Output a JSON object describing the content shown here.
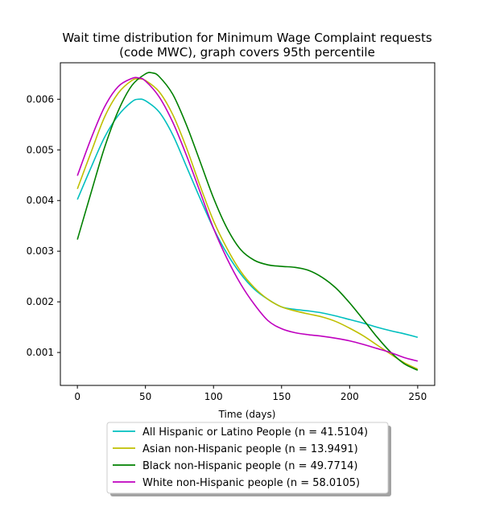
{
  "chart_data": {
    "type": "line",
    "title_line1": "Wait time distribution  for Minimum Wage Complaint  requests",
    "title_line2": "(code MWC), graph covers 95th percentile",
    "xlabel": "Time (days)",
    "ylabel": "",
    "xlim": [
      -12.5,
      262.5
    ],
    "ylim": [
      0.00035,
      0.00672
    ],
    "x_ticks": [
      0,
      50,
      100,
      150,
      200,
      250
    ],
    "y_ticks": [
      0.001,
      0.002,
      0.003,
      0.004,
      0.005,
      0.006
    ],
    "y_tick_labels": [
      "0.001",
      "0.002",
      "0.003",
      "0.004",
      "0.005",
      "0.006"
    ],
    "grid": false,
    "legend_position": "below plot",
    "series": [
      {
        "name": "All Hispanic or Latino People (n = 41.5104)",
        "color": "#00bfbf",
        "x": [
          0,
          10,
          20,
          30,
          40,
          45,
          50,
          60,
          70,
          80,
          90,
          100,
          110,
          120,
          130,
          140,
          150,
          160,
          170,
          180,
          190,
          200,
          210,
          220,
          230,
          240,
          250
        ],
        "y": [
          0.00402,
          0.00465,
          0.00525,
          0.00568,
          0.00595,
          0.006,
          0.00597,
          0.00575,
          0.0053,
          0.00468,
          0.00405,
          0.00345,
          0.00295,
          0.00255,
          0.00225,
          0.00205,
          0.0019,
          0.00185,
          0.00182,
          0.00178,
          0.00172,
          0.00165,
          0.00158,
          0.0015,
          0.00143,
          0.00137,
          0.0013
        ]
      },
      {
        "name": "Asian non-Hispanic people (n = 13.9491)",
        "color": "#bfbf00",
        "x": [
          0,
          10,
          20,
          30,
          40,
          45,
          50,
          60,
          70,
          80,
          90,
          100,
          110,
          120,
          130,
          140,
          150,
          160,
          170,
          180,
          190,
          200,
          210,
          220,
          230,
          240,
          250
        ],
        "y": [
          0.00423,
          0.00495,
          0.00565,
          0.00612,
          0.00637,
          0.0064,
          0.00637,
          0.00615,
          0.0057,
          0.00505,
          0.0043,
          0.0036,
          0.00305,
          0.0026,
          0.00228,
          0.00205,
          0.0019,
          0.00182,
          0.00176,
          0.0017,
          0.00161,
          0.00148,
          0.00133,
          0.00115,
          0.00097,
          0.0008,
          0.00067
        ]
      },
      {
        "name": "Black non-Hispanic people (n = 49.7714)",
        "color": "#008000",
        "x": [
          0,
          10,
          20,
          30,
          40,
          50,
          55,
          60,
          70,
          80,
          90,
          100,
          110,
          120,
          130,
          140,
          150,
          160,
          170,
          180,
          190,
          200,
          210,
          220,
          230,
          240,
          250
        ],
        "y": [
          0.00323,
          0.00415,
          0.00505,
          0.00577,
          0.00627,
          0.0065,
          0.00652,
          0.00645,
          0.0061,
          0.0055,
          0.00478,
          0.00405,
          0.00345,
          0.00303,
          0.00282,
          0.00273,
          0.0027,
          0.00268,
          0.00262,
          0.00248,
          0.00227,
          0.00198,
          0.00165,
          0.00131,
          0.00101,
          0.00078,
          0.00065
        ]
      },
      {
        "name": "White non-Hispanic people (n = 58.0105)",
        "color": "#bf00bf",
        "x": [
          0,
          10,
          20,
          30,
          40,
          45,
          50,
          60,
          70,
          80,
          90,
          100,
          110,
          120,
          130,
          140,
          150,
          160,
          170,
          180,
          190,
          200,
          210,
          220,
          230,
          240,
          250
        ],
        "y": [
          0.00449,
          0.00522,
          0.00585,
          0.00625,
          0.00641,
          0.00642,
          0.00636,
          0.00605,
          0.00555,
          0.0049,
          0.00418,
          0.00345,
          0.00285,
          0.00235,
          0.00195,
          0.00163,
          0.00147,
          0.00139,
          0.00135,
          0.00132,
          0.00128,
          0.00123,
          0.00116,
          0.00108,
          0.001,
          0.0009,
          0.00083
        ]
      }
    ]
  }
}
